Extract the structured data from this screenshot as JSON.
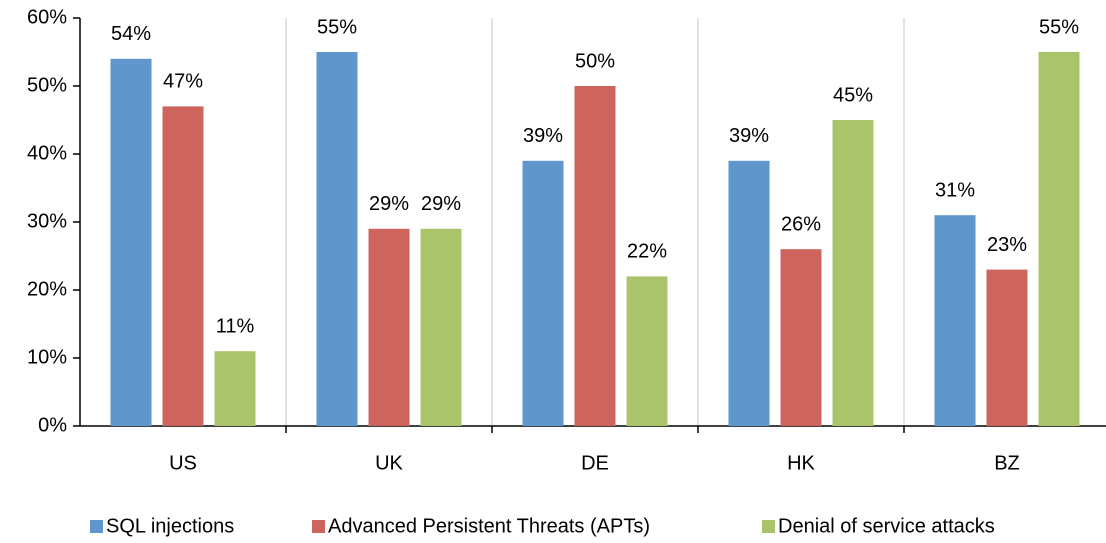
{
  "chart_data": {
    "type": "bar",
    "categories": [
      "US",
      "UK",
      "DE",
      "HK",
      "BZ"
    ],
    "series": [
      {
        "name": "SQL injections",
        "color": "#5f96cb",
        "values": [
          54,
          55,
          39,
          39,
          31
        ],
        "value_labels": [
          "54%",
          "55%",
          "39%",
          "39%",
          "31%"
        ]
      },
      {
        "name": "Advanced Persistent Threats (APTs)",
        "color": "#ce645e",
        "values": [
          47,
          29,
          50,
          26,
          23
        ],
        "value_labels": [
          "47%",
          "29%",
          "50%",
          "26%",
          "23%"
        ]
      },
      {
        "name": "Denial of service attacks",
        "color": "#aac46c",
        "values": [
          11,
          29,
          22,
          45,
          55
        ],
        "value_labels": [
          "11%",
          "29%",
          "22%",
          "45%",
          "55%"
        ]
      }
    ],
    "ylim": [
      0,
      60
    ],
    "yticks": [
      {
        "value": 0,
        "label": "0%"
      },
      {
        "value": 10,
        "label": "10%"
      },
      {
        "value": 20,
        "label": "20%"
      },
      {
        "value": 30,
        "label": "30%"
      },
      {
        "value": 40,
        "label": "40%"
      },
      {
        "value": 50,
        "label": "50%"
      },
      {
        "value": 60,
        "label": "60%"
      }
    ],
    "legend": "bottom"
  }
}
